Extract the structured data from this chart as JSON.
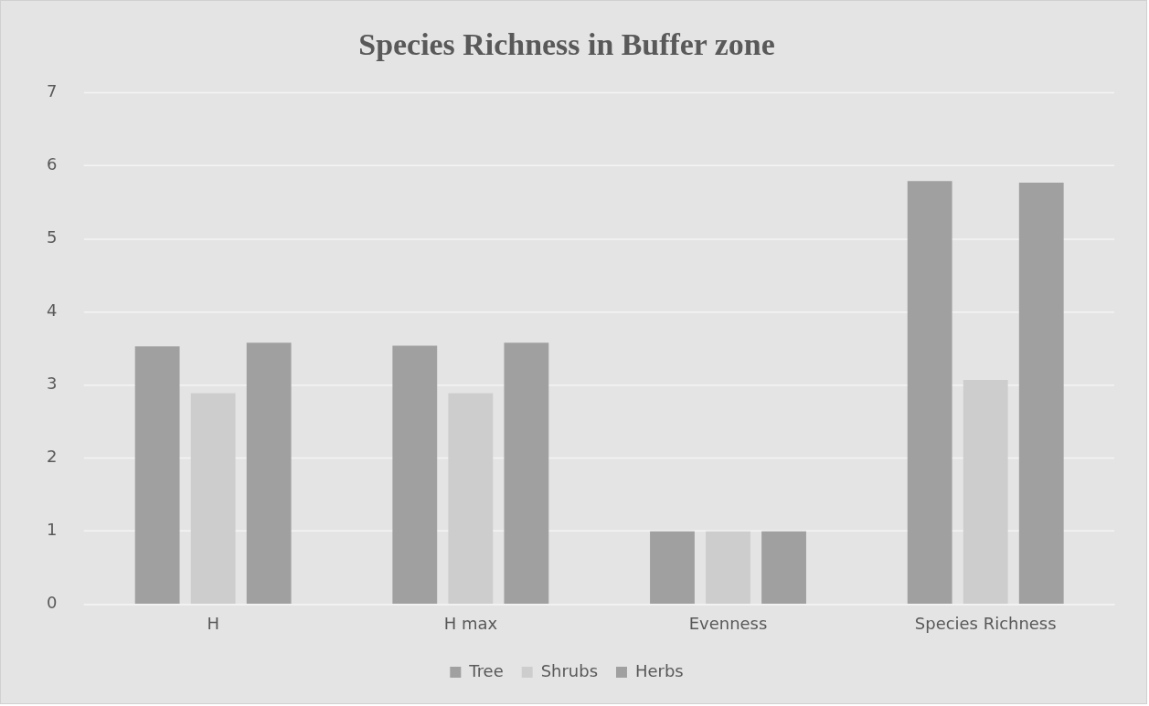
{
  "chart_data": {
    "type": "bar",
    "title": "Species Richness in Buffer zone",
    "categories": [
      "H",
      "H max",
      "Evenness",
      "Species Richness"
    ],
    "series": [
      {
        "name": "Tree",
        "color": "#a0a0a0",
        "values": [
          3.53,
          3.54,
          1.0,
          5.79
        ]
      },
      {
        "name": "Shrubs",
        "color": "#cdcdcd",
        "values": [
          2.89,
          2.89,
          1.0,
          3.07
        ]
      },
      {
        "name": "Herbs",
        "color": "#a0a0a0",
        "values": [
          3.58,
          3.58,
          1.0,
          5.77
        ]
      }
    ],
    "ylim": [
      0,
      7
    ],
    "yticks": [
      0,
      1,
      2,
      3,
      4,
      5,
      6,
      7
    ],
    "grid": "y",
    "legend": "bottom"
  }
}
